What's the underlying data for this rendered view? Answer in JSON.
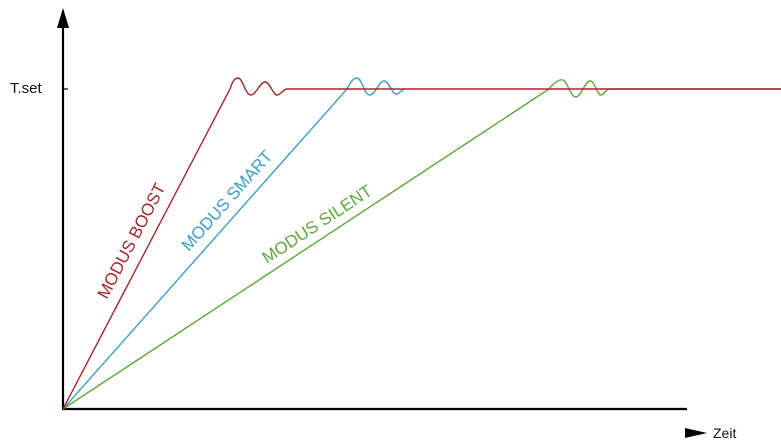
{
  "diagram": {
    "y_axis_label": "T.set",
    "x_axis_label": "Zeit",
    "modes": [
      {
        "id": "boost",
        "label": "MODUS BOOST",
        "color": "#a3282c"
      },
      {
        "id": "smart",
        "label": "MODUS SMART",
        "color": "#3b9fc8"
      },
      {
        "id": "silent",
        "label": "MODUS SILENT",
        "color": "#5aa83a"
      }
    ]
  }
}
